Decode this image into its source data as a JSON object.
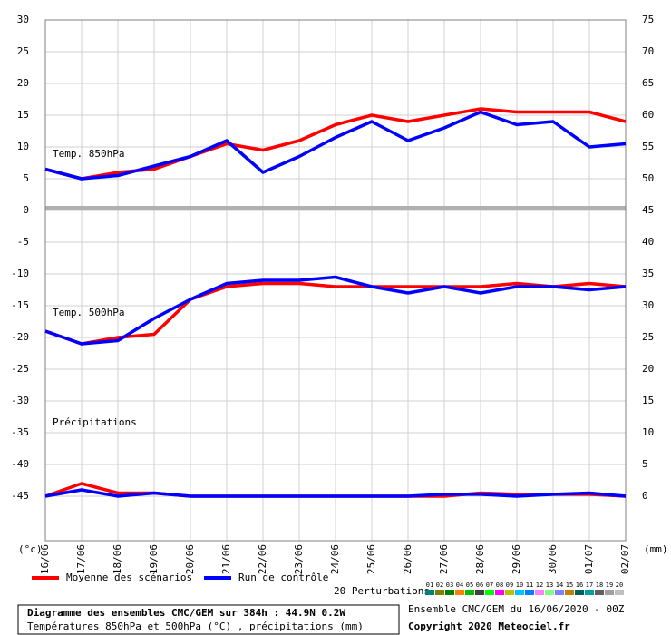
{
  "chart_data": {
    "type": "line",
    "categories": [
      "16/06",
      "17/06",
      "18/06",
      "19/06",
      "20/06",
      "21/06",
      "22/06",
      "23/06",
      "24/06",
      "25/06",
      "26/06",
      "27/06",
      "28/06",
      "29/06",
      "30/06",
      "01/07",
      "02/07"
    ],
    "ylim": [
      -52,
      30
    ],
    "yticks": [
      30,
      25,
      20,
      15,
      10,
      5,
      0,
      -5,
      -10,
      -15,
      -20,
      -25,
      -30,
      -35,
      -40,
      -45
    ],
    "y2lim": [
      -7,
      75
    ],
    "y2ticks": [
      75,
      70,
      65,
      60,
      55,
      50,
      45,
      40,
      35,
      30,
      25,
      20,
      15,
      10,
      5,
      0
    ],
    "grid": true,
    "y_unit": "(°c)",
    "y2_unit": "(mm)",
    "annotations": [
      "Temp. 850hPa",
      "Temp. 500hPa",
      "Précipitations"
    ],
    "legend": [
      {
        "name": "Moyenne des scénarios",
        "color": "#ff0000"
      },
      {
        "name": "Run de contrôle",
        "color": "#0000ff"
      }
    ],
    "perturbations": {
      "label": "20 Perturbations",
      "items": [
        {
          "label": "01",
          "color": "#008080"
        },
        {
          "label": "02",
          "color": "#808000"
        },
        {
          "label": "03",
          "color": "#008000"
        },
        {
          "label": "04",
          "color": "#ff8000"
        },
        {
          "label": "05",
          "color": "#00c000"
        },
        {
          "label": "06",
          "color": "#404040"
        },
        {
          "label": "07",
          "color": "#00ff00"
        },
        {
          "label": "08",
          "color": "#ff00ff"
        },
        {
          "label": "09",
          "color": "#c0c000"
        },
        {
          "label": "10",
          "color": "#00c0ff"
        },
        {
          "label": "11",
          "color": "#0080ff"
        },
        {
          "label": "12",
          "color": "#ff80ff"
        },
        {
          "label": "13",
          "color": "#80ff80"
        },
        {
          "label": "14",
          "color": "#8080ff"
        },
        {
          "label": "15",
          "color": "#c08000"
        },
        {
          "label": "16",
          "color": "#006060"
        },
        {
          "label": "17",
          "color": "#00a0a0"
        },
        {
          "label": "18",
          "color": "#606060"
        },
        {
          "label": "19",
          "color": "#a0a0a0"
        },
        {
          "label": "20",
          "color": "#c0c0c0"
        }
      ]
    },
    "series": [
      {
        "legend": 0,
        "color": "#ff0000",
        "values": [
          6.5,
          5,
          6,
          6.5,
          8.5,
          10.5,
          9.5,
          11,
          13.5,
          15,
          14,
          15,
          16,
          15.5,
          15.5,
          15.5,
          14
        ]
      },
      {
        "legend": 1,
        "color": "#0000ff",
        "values": [
          6.5,
          5,
          5.5,
          7,
          8.5,
          11,
          6,
          8.5,
          11.5,
          14,
          11,
          13,
          15.5,
          13.5,
          14,
          10,
          10.5
        ]
      },
      {
        "legend": 0,
        "color": "#ff0000",
        "values": [
          -19,
          -21,
          -20,
          -19.5,
          -14,
          -12,
          -11.5,
          -11.5,
          -12,
          -12,
          -12,
          -12,
          -12,
          -11.5,
          -12,
          -11.5,
          -12
        ]
      },
      {
        "legend": 1,
        "color": "#0000ff",
        "values": [
          -19,
          -21,
          -20.5,
          -17,
          -14,
          -11.5,
          -11,
          -11,
          -10.5,
          -12,
          -13,
          -12,
          -13,
          -12,
          -12,
          -12.5,
          -12
        ]
      },
      {
        "legend": 0,
        "color": "#ff0000",
        "axis": "y2",
        "values": [
          0,
          2,
          0.5,
          0.5,
          0,
          0,
          0,
          0,
          0,
          0,
          0,
          0,
          0.5,
          0.3,
          0.3,
          0.3,
          0
        ]
      },
      {
        "legend": 1,
        "color": "#0000ff",
        "axis": "y2",
        "values": [
          0,
          1,
          0,
          0.5,
          0,
          0,
          0,
          0,
          0,
          0,
          0,
          0.3,
          0.3,
          0,
          0.3,
          0.5,
          0
        ]
      }
    ],
    "footer": {
      "left": [
        "Diagramme des ensembles CMC/GEM sur 384h : 44.9N 0.2W",
        "Températures 850hPa et 500hPa (°C) , précipitations (mm)"
      ],
      "right": [
        "Ensemble CMC/GEM du 16/06/2020 - 00Z",
        "Copyright 2020 Meteociel.fr"
      ]
    }
  }
}
